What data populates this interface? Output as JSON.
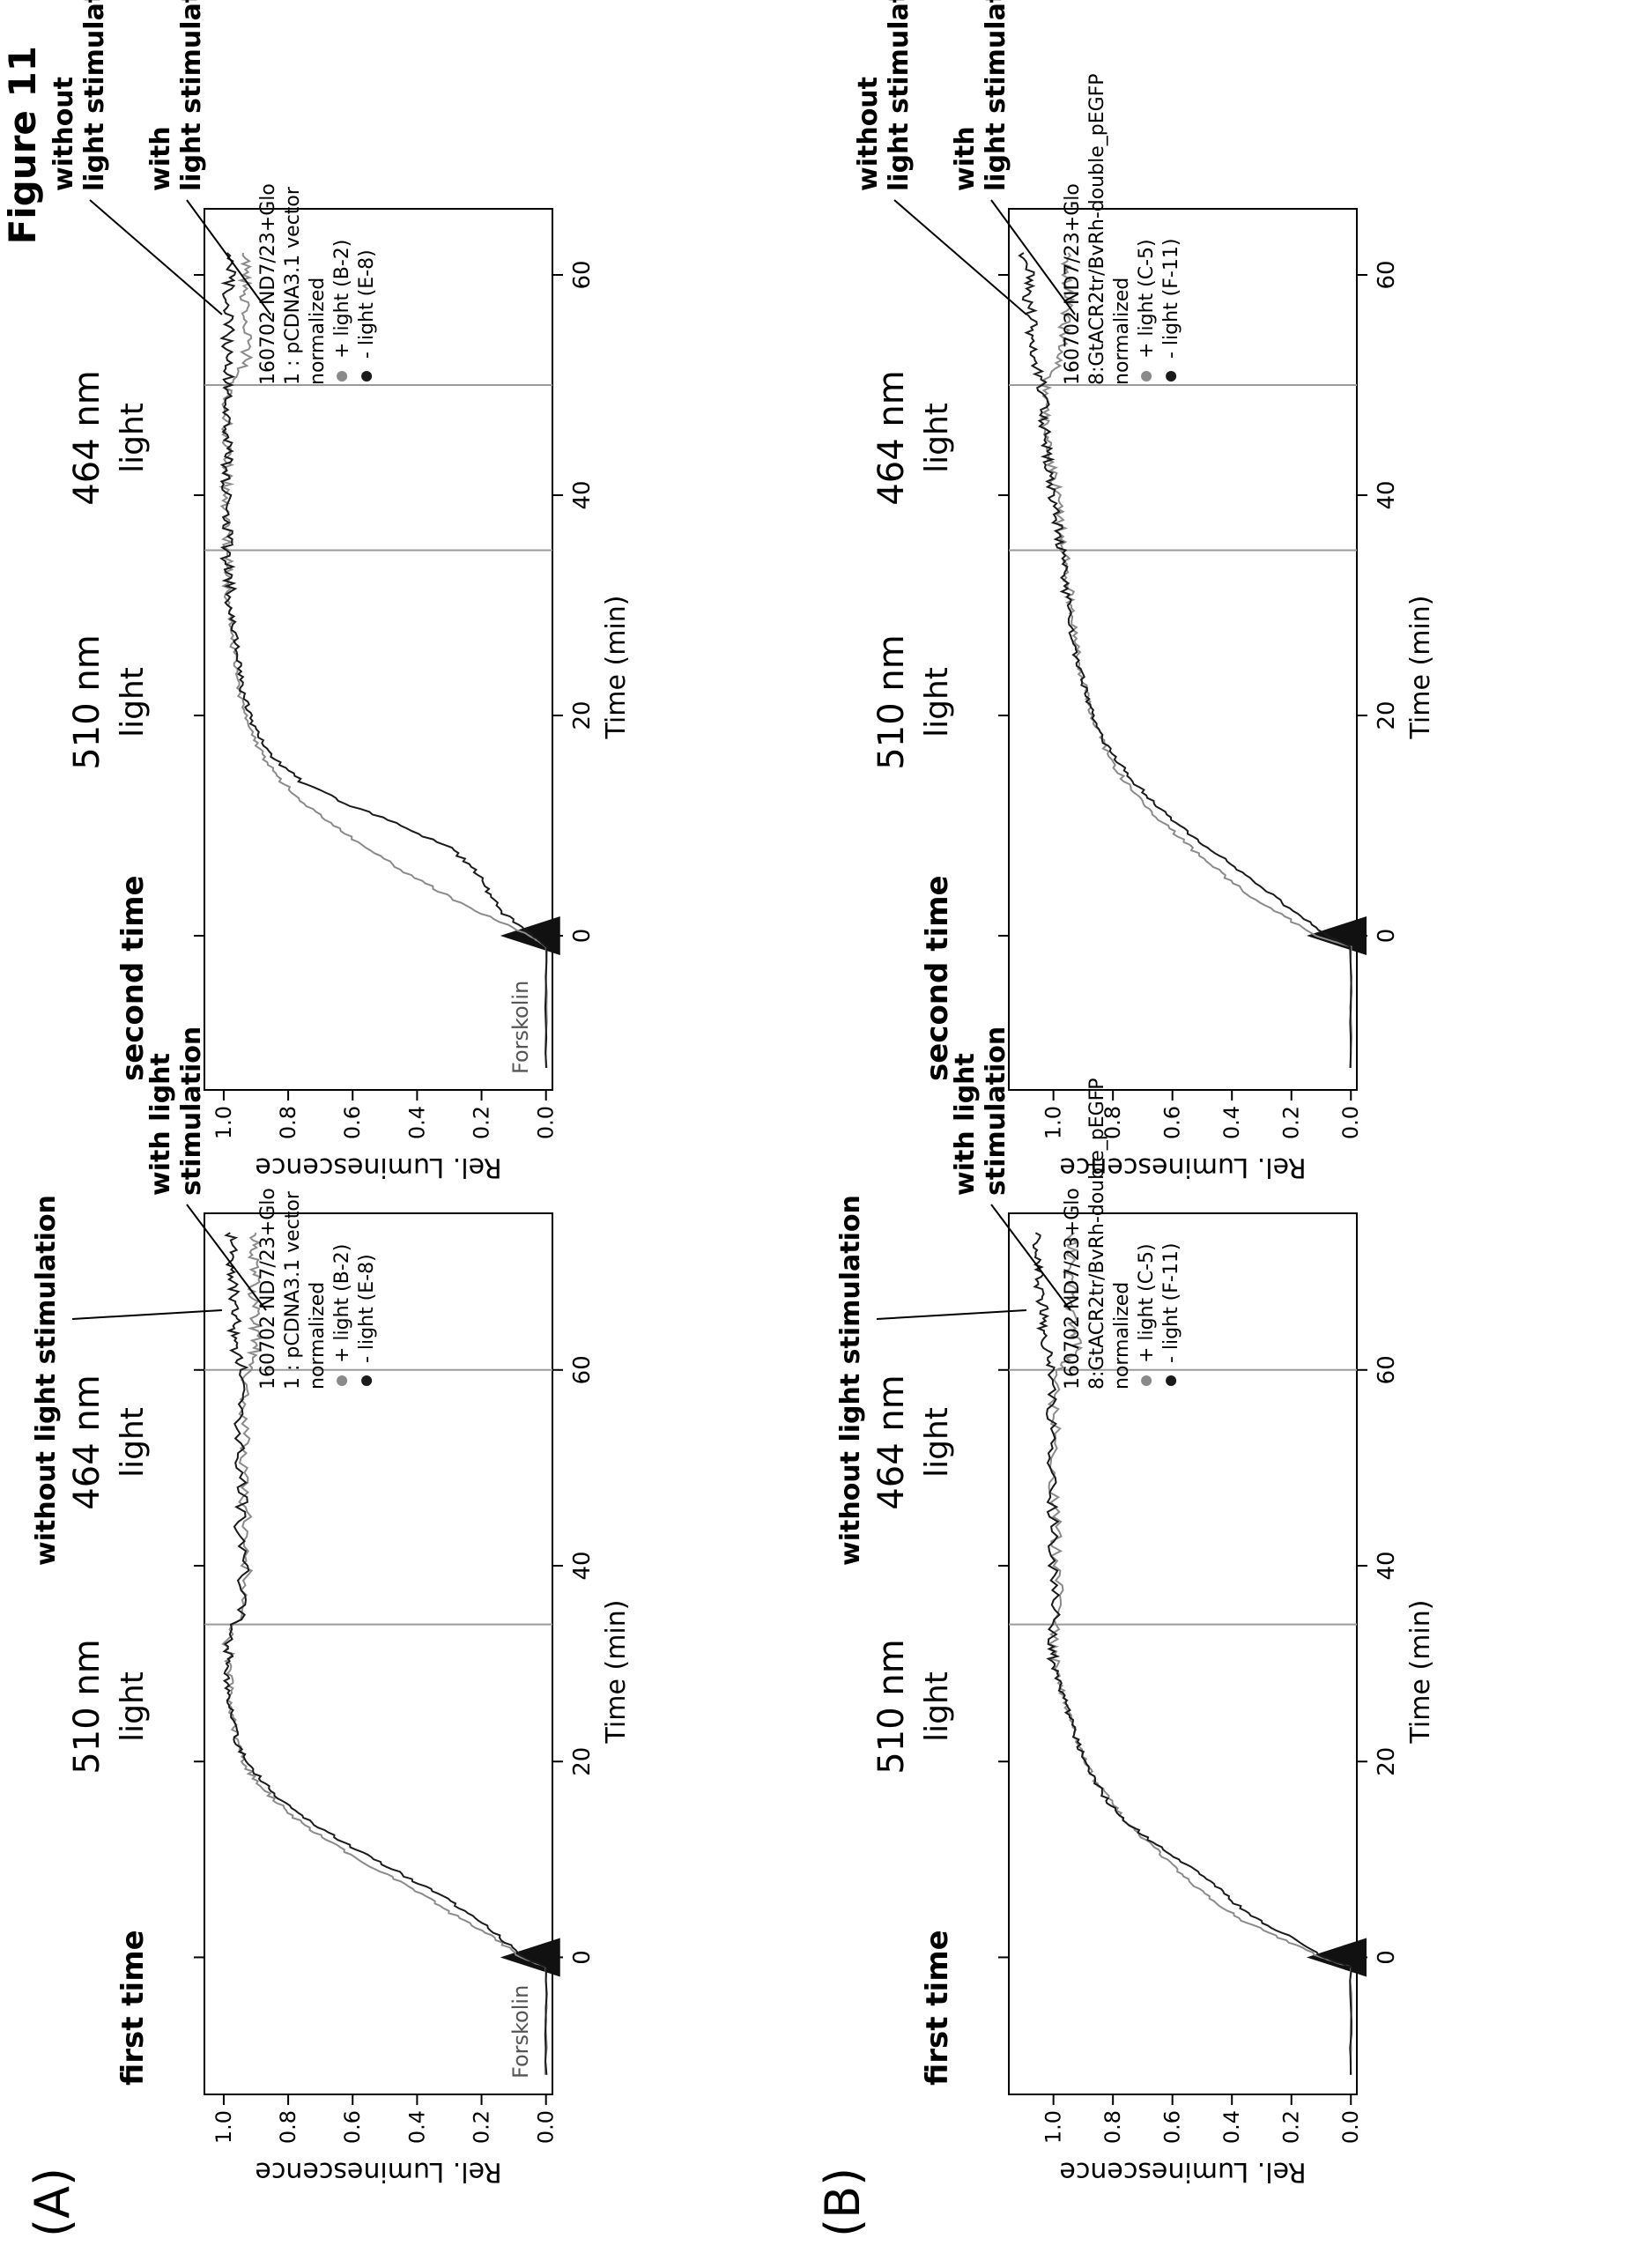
{
  "figure_title": "Figure 11",
  "panel_labels": [
    "(A)",
    "(B)"
  ],
  "column_labels": [
    "first time",
    "second time"
  ],
  "light_510": "510 nm",
  "light_464": "464 nm",
  "light_word": "light",
  "arrow_without": "without light stimulation",
  "arrow_with_line1": "with light",
  "arrow_with_line2": "stimulation",
  "arrow_without_r1": "without",
  "arrow_without_r2": "light stimulation",
  "arrow_with_r1": "with",
  "arrow_with_r2": "light stimulation",
  "forskolin": "Forskolin",
  "colors": {
    "plus_light": "#8a8a8a",
    "minus_light": "#1a1a1a",
    "axis": "#000000"
  },
  "chart_data": [
    {
      "panel": "A",
      "session": "first time",
      "type": "line",
      "xlabel": "Time (min)",
      "ylabel": "Rel. Luminescence",
      "xlim": [
        -14,
        76
      ],
      "ylim": [
        -0.02,
        1.06
      ],
      "xticks": [
        0,
        20,
        40,
        60
      ],
      "yticks": [
        0.0,
        0.2,
        0.4,
        0.6,
        0.8,
        1.0
      ],
      "ytick_labels": [
        "0.0",
        "0.2",
        "0.4",
        "0.6",
        "0.8",
        "1.0"
      ],
      "legend": [
        "160702 ND7/23+Glo",
        "1 : pCDNA3.1 vector",
        "normalized",
        "+ light (B-2)",
        "- light (E-8)"
      ],
      "vlines": [
        34,
        60
      ],
      "forskolin_at": 0,
      "series": [
        {
          "name": "+ light (B-2)",
          "color": "#8a8a8a",
          "x": [
            -12,
            -1,
            0,
            2,
            4,
            6,
            8,
            10,
            12,
            14,
            16,
            18,
            20,
            22,
            24,
            26,
            28,
            30,
            32,
            36,
            40,
            44,
            48,
            52,
            56,
            60,
            62,
            64,
            66,
            68,
            70,
            72,
            74
          ],
          "y": [
            0.0,
            0.0,
            0.08,
            0.16,
            0.27,
            0.36,
            0.47,
            0.58,
            0.68,
            0.77,
            0.84,
            0.9,
            0.94,
            0.96,
            0.97,
            0.98,
            0.98,
            0.98,
            0.99,
            0.93,
            0.93,
            0.93,
            0.94,
            0.93,
            0.94,
            0.93,
            0.9,
            0.9,
            0.9,
            0.91,
            0.9,
            0.91,
            0.9
          ]
        },
        {
          "name": "- light (E-8)",
          "color": "#1a1a1a",
          "x": [
            -12,
            -1,
            0,
            2,
            4,
            6,
            8,
            10,
            12,
            14,
            16,
            18,
            20,
            22,
            24,
            26,
            28,
            30,
            32,
            36,
            40,
            44,
            48,
            52,
            56,
            60,
            62,
            64,
            66,
            68,
            70,
            72,
            74
          ],
          "y": [
            0.0,
            0.0,
            0.07,
            0.14,
            0.22,
            0.31,
            0.42,
            0.53,
            0.64,
            0.74,
            0.82,
            0.88,
            0.93,
            0.96,
            0.97,
            0.98,
            0.99,
            0.99,
            0.99,
            0.94,
            0.94,
            0.95,
            0.94,
            0.95,
            0.95,
            0.94,
            0.96,
            0.97,
            0.96,
            0.97,
            0.98,
            0.97,
            0.98
          ]
        }
      ]
    },
    {
      "panel": "A",
      "session": "second time",
      "type": "line",
      "xlabel": "Time (min)",
      "ylabel": "Rel. Luminescence",
      "xlim": [
        -14,
        66
      ],
      "ylim": [
        -0.02,
        1.06
      ],
      "xticks": [
        0,
        20,
        40,
        60
      ],
      "yticks": [
        0.0,
        0.2,
        0.4,
        0.6,
        0.8,
        1.0
      ],
      "ytick_labels": [
        "0.0",
        "0.2",
        "0.4",
        "0.6",
        "0.8",
        "1.0"
      ],
      "legend": [
        "160702 ND7/23+Glo",
        "1 : pCDNA3.1 vector",
        "normalized",
        "+ light (B-2)",
        "- light (E-8)"
      ],
      "vlines": [
        35,
        50
      ],
      "forskolin_at": 0,
      "series": [
        {
          "name": "+ light (B-2)",
          "color": "#8a8a8a",
          "x": [
            -12,
            -1,
            0,
            2,
            4,
            6,
            8,
            10,
            12,
            14,
            16,
            18,
            20,
            22,
            24,
            26,
            28,
            30,
            32,
            34,
            36,
            38,
            40,
            42,
            44,
            46,
            48,
            50,
            52,
            54,
            56,
            58,
            60,
            62
          ],
          "y": [
            0.0,
            0.0,
            0.05,
            0.2,
            0.33,
            0.45,
            0.56,
            0.66,
            0.75,
            0.82,
            0.87,
            0.91,
            0.93,
            0.95,
            0.96,
            0.97,
            0.98,
            0.98,
            0.99,
            0.99,
            0.99,
            0.99,
            0.99,
            0.99,
            0.99,
            0.99,
            0.99,
            0.99,
            0.93,
            0.93,
            0.93,
            0.94,
            0.93,
            0.94
          ]
        },
        {
          "name": "- light (E-8)",
          "color": "#1a1a1a",
          "x": [
            -12,
            -1,
            0,
            2,
            4,
            6,
            8,
            10,
            12,
            14,
            16,
            18,
            20,
            22,
            24,
            26,
            28,
            30,
            32,
            34,
            36,
            38,
            40,
            42,
            44,
            46,
            48,
            50,
            52,
            54,
            56,
            58,
            60,
            62
          ],
          "y": [
            0.0,
            0.0,
            0.04,
            0.13,
            0.18,
            0.22,
            0.3,
            0.45,
            0.62,
            0.76,
            0.84,
            0.89,
            0.92,
            0.94,
            0.95,
            0.96,
            0.97,
            0.98,
            0.98,
            0.99,
            0.99,
            0.99,
            0.99,
            0.99,
            0.99,
            0.99,
            0.99,
            0.99,
            0.98,
            0.99,
            0.98,
            0.99,
            0.98,
            0.99
          ]
        }
      ]
    },
    {
      "panel": "B",
      "session": "first time",
      "type": "line",
      "xlabel": "Time (min)",
      "ylabel": "Rel. Luminescence",
      "xlim": [
        -14,
        76
      ],
      "ylim": [
        -0.02,
        1.15
      ],
      "xticks": [
        0,
        20,
        40,
        60
      ],
      "yticks": [
        0.0,
        0.2,
        0.4,
        0.6,
        0.8,
        1.0
      ],
      "ytick_labels": [
        "0.0",
        "0.2",
        "0.4",
        "0.6",
        "0.8",
        "1.0"
      ],
      "legend": [
        "160702 ND7/23+Glo",
        "8:GtACR2tr/BvRh-double_pEGFP",
        "normalized",
        "+ light (C-5)",
        "- light (F-11)"
      ],
      "vlines": [
        34,
        60
      ],
      "forskolin_at": 0,
      "series": [
        {
          "name": "+ light (C-5)",
          "color": "#8a8a8a",
          "x": [
            -12,
            -1,
            0,
            2,
            4,
            6,
            8,
            10,
            12,
            14,
            16,
            18,
            20,
            22,
            24,
            26,
            28,
            30,
            32,
            36,
            40,
            44,
            48,
            52,
            56,
            60,
            62,
            64,
            66,
            68,
            70,
            72,
            74
          ],
          "y": [
            0.0,
            0.0,
            0.1,
            0.24,
            0.38,
            0.47,
            0.55,
            0.62,
            0.69,
            0.76,
            0.81,
            0.86,
            0.89,
            0.92,
            0.94,
            0.96,
            0.98,
            0.99,
            1.0,
            0.98,
            0.99,
            0.99,
            1.0,
            0.99,
            1.0,
            0.98,
            0.92,
            0.93,
            0.94,
            0.93,
            0.95,
            0.94,
            0.93
          ]
        },
        {
          "name": "- light (F-11)",
          "color": "#1a1a1a",
          "x": [
            -12,
            -1,
            0,
            2,
            4,
            6,
            8,
            10,
            12,
            14,
            16,
            18,
            20,
            22,
            24,
            26,
            28,
            30,
            32,
            36,
            40,
            44,
            48,
            52,
            56,
            60,
            62,
            64,
            66,
            68,
            70,
            72,
            74
          ],
          "y": [
            0.0,
            0.0,
            0.09,
            0.2,
            0.32,
            0.41,
            0.48,
            0.58,
            0.68,
            0.76,
            0.82,
            0.86,
            0.89,
            0.92,
            0.94,
            0.96,
            0.98,
            1.0,
            1.01,
            0.99,
            1.0,
            1.0,
            1.01,
            1.0,
            1.01,
            1.0,
            1.02,
            1.04,
            1.03,
            1.05,
            1.04,
            1.05,
            1.06
          ]
        }
      ]
    },
    {
      "panel": "B",
      "session": "second time",
      "type": "line",
      "xlabel": "Time (min)",
      "ylabel": "Rel. Luminescence",
      "xlim": [
        -14,
        66
      ],
      "ylim": [
        -0.02,
        1.15
      ],
      "xticks": [
        0,
        20,
        40,
        60
      ],
      "yticks": [
        0.0,
        0.2,
        0.4,
        0.6,
        0.8,
        1.0
      ],
      "ytick_labels": [
        "0.0",
        "0.2",
        "0.4",
        "0.6",
        "0.8",
        "1.0"
      ],
      "legend": [
        "160702 ND7/23+Glo",
        "8:GtACR2tr/BvRh-double_pEGFP",
        "normalized",
        "+ light (C-5)",
        "- light (F-11)"
      ],
      "vlines": [
        35,
        50
      ],
      "forskolin_at": 0,
      "series": [
        {
          "name": "+ light (C-5)",
          "color": "#8a8a8a",
          "x": [
            -12,
            -1,
            0,
            2,
            4,
            6,
            8,
            10,
            12,
            14,
            16,
            18,
            20,
            22,
            24,
            26,
            28,
            30,
            32,
            34,
            36,
            38,
            40,
            42,
            44,
            46,
            48,
            50,
            52,
            54,
            56,
            58,
            60,
            62
          ],
          "y": [
            0.0,
            0.0,
            0.12,
            0.24,
            0.36,
            0.45,
            0.54,
            0.62,
            0.7,
            0.76,
            0.81,
            0.84,
            0.87,
            0.89,
            0.91,
            0.92,
            0.93,
            0.94,
            0.95,
            0.96,
            0.97,
            0.98,
            0.99,
            1.0,
            1.01,
            1.02,
            1.03,
            1.03,
            0.98,
            0.97,
            0.96,
            0.95,
            0.96,
            0.95
          ]
        },
        {
          "name": "- light (F-11)",
          "color": "#1a1a1a",
          "x": [
            -12,
            -1,
            0,
            2,
            4,
            6,
            8,
            10,
            12,
            14,
            16,
            18,
            20,
            22,
            24,
            26,
            28,
            30,
            32,
            34,
            36,
            38,
            40,
            42,
            44,
            46,
            48,
            50,
            52,
            54,
            56,
            58,
            60,
            62
          ],
          "y": [
            0.0,
            0.0,
            0.08,
            0.18,
            0.28,
            0.38,
            0.48,
            0.58,
            0.66,
            0.73,
            0.79,
            0.84,
            0.87,
            0.89,
            0.91,
            0.93,
            0.94,
            0.95,
            0.96,
            0.97,
            0.98,
            0.99,
            1.0,
            1.01,
            1.02,
            1.03,
            1.03,
            1.04,
            1.06,
            1.08,
            1.07,
            1.09,
            1.08,
            1.1
          ]
        }
      ]
    }
  ]
}
